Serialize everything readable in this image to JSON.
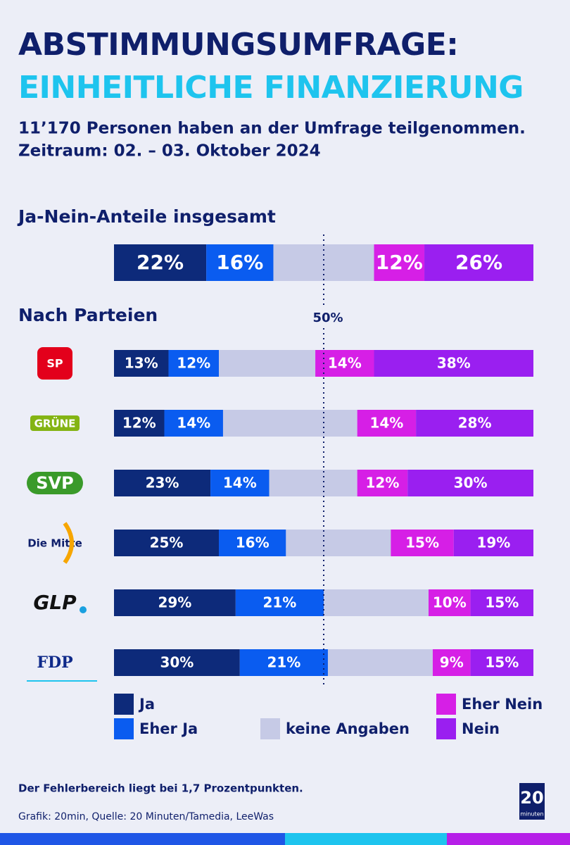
{
  "header": {
    "title_line1": "ABSTIMMUNGSUMFRAGE:",
    "title_line2": "EINHEITLICHE FINANZIERUNG",
    "subtitle_line1": "11’170 Personen haben an der Umfrage teilgenommen.",
    "subtitle_line2": "Zeitraum:  02. – 03. Oktober 2024"
  },
  "chart_data": [
    {
      "type": "bar",
      "orientation": "horizontal",
      "stacked": true,
      "title": "Ja-Nein-Anteile insgesamt",
      "categories": [
        null
      ],
      "xlim": [
        0,
        100
      ],
      "series": [
        {
          "name": "Ja",
          "color": "#0d2a7a",
          "values": [
            22
          ],
          "value_labels": [
            "22%"
          ]
        },
        {
          "name": "Eher Ja",
          "color": "#0a5cf0",
          "values": [
            16
          ],
          "value_labels": [
            "16%"
          ]
        },
        {
          "name": "keine Angaben",
          "color": "#c6cae6",
          "values": [
            24
          ]
        },
        {
          "name": "Eher Nein",
          "color": "#d61fe6",
          "values": [
            12
          ],
          "value_labels": [
            "12%"
          ]
        },
        {
          "name": "Nein",
          "color": "#9a1ff0",
          "values": [
            26
          ],
          "value_labels": [
            "26%"
          ]
        }
      ]
    },
    {
      "type": "bar",
      "orientation": "horizontal",
      "stacked": true,
      "title": "Nach Parteien",
      "categories": [
        "SP",
        "GRÜNE",
        "SVP",
        "Die Mitte",
        "GLP",
        "FDP"
      ],
      "xlim": [
        0,
        100
      ],
      "reference_line": {
        "value": 50,
        "label": "50%"
      },
      "series": [
        {
          "name": "Ja",
          "color": "#0d2a7a",
          "values": [
            13,
            12,
            23,
            25,
            29,
            30
          ],
          "value_labels": [
            "13%",
            "12%",
            "23%",
            "25%",
            "29%",
            "30%"
          ]
        },
        {
          "name": "Eher Ja",
          "color": "#0a5cf0",
          "values": [
            12,
            14,
            14,
            16,
            21,
            21
          ],
          "value_labels": [
            "12%",
            "14%",
            "14%",
            "16%",
            "21%",
            "21%"
          ]
        },
        {
          "name": "keine Angaben",
          "color": "#c6cae6",
          "values": [
            23,
            32,
            21,
            25,
            25,
            25
          ]
        },
        {
          "name": "Eher Nein",
          "color": "#d61fe6",
          "values": [
            14,
            14,
            12,
            15,
            10,
            9
          ],
          "value_labels": [
            "14%",
            "14%",
            "12%",
            "15%",
            "10%",
            "9%"
          ]
        },
        {
          "name": "Nein",
          "color": "#9a1ff0",
          "values": [
            38,
            28,
            30,
            19,
            15,
            15
          ],
          "value_labels": [
            "38%",
            "28%",
            "30%",
            "19%",
            "15%",
            "15%"
          ]
        }
      ]
    }
  ],
  "footer": {
    "note": "Der Fehlerbereich liegt bei 1,7 Prozentpunkten.",
    "source": "Grafik: 20min, Quelle: 20 Minuten/Tamedia, LeeWas",
    "logo_top": "20",
    "logo_bottom": "minuten"
  }
}
